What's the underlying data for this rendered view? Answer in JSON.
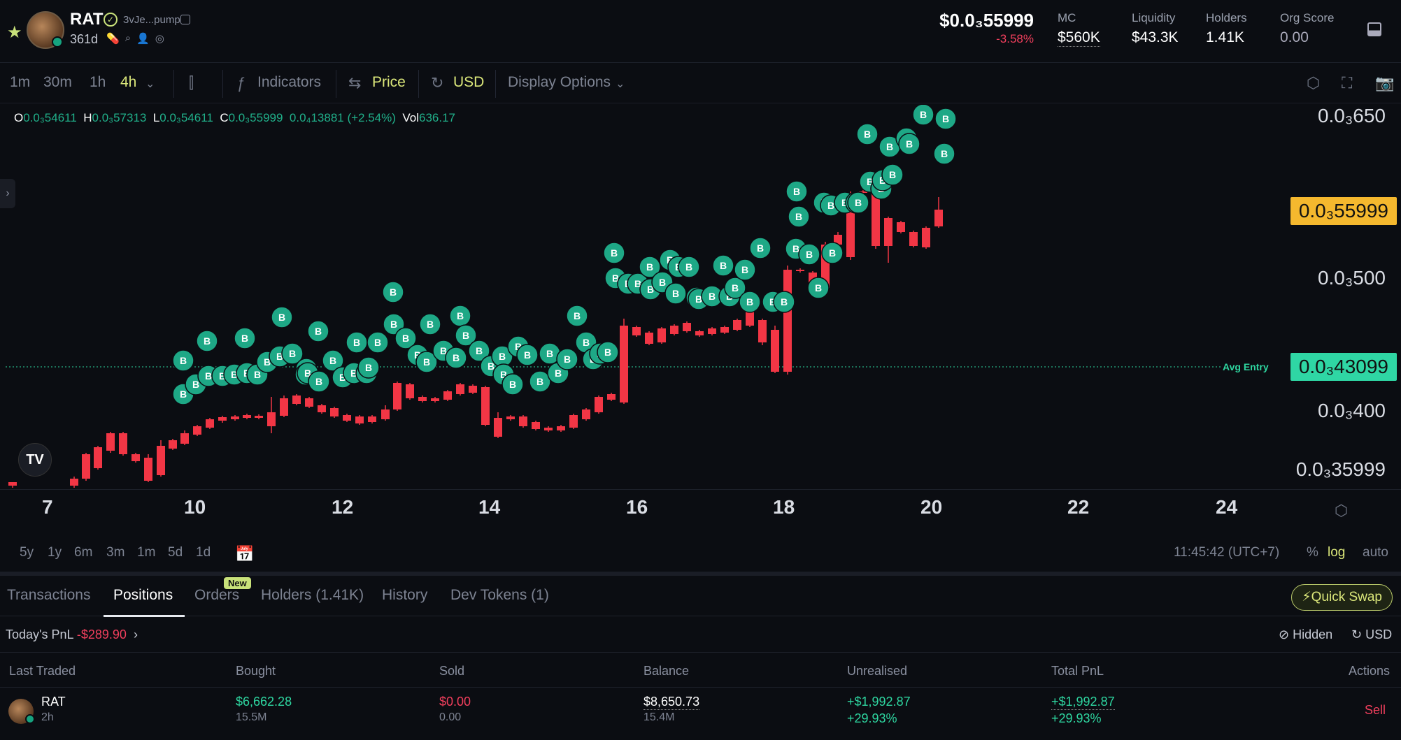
{
  "header": {
    "symbol": "RAT",
    "address": "3vJe...pump",
    "age": "361d",
    "price": "$0.0₃55999",
    "change": "-3.58%",
    "stats": [
      {
        "label": "MC",
        "value": "$560K"
      },
      {
        "label": "Liquidity",
        "value": "$43.3K"
      },
      {
        "label": "Holders",
        "value": "1.41K"
      },
      {
        "label": "Org Score",
        "value": "0.00"
      }
    ]
  },
  "toolbar": {
    "intervals": [
      "1m",
      "30m",
      "1h",
      "4h"
    ],
    "active_interval": "4h",
    "indicators_label": "Indicators",
    "price_label": "Price",
    "currency_label": "USD",
    "display_label": "Display Options"
  },
  "ohlc": {
    "o_label": "O",
    "o": "0.0₃54611",
    "h_label": "H",
    "h": "0.0₃57313",
    "l_label": "L",
    "l": "0.0₃54611",
    "c_label": "C",
    "c": "0.0₃55999",
    "change": "0.0₄13881 (+2.54%)",
    "vol_label": "Vol",
    "vol": "636.17"
  },
  "chart": {
    "price_ticks": [
      "0.0₃650",
      "0.0₃500",
      "0.0₃400",
      "0.0₃35999"
    ],
    "price_tag": "0.0₃55999",
    "avg_entry_label": "Avg Entry",
    "avg_entry_tag": "0.0₃43099",
    "date_ticks": [
      "7",
      "10",
      "12",
      "14",
      "16",
      "18",
      "20",
      "22",
      "24"
    ],
    "marker_label": "B",
    "colors": {
      "up": "#089981",
      "down": "#f23645",
      "marker": "#1ea886"
    }
  },
  "ranges": {
    "items": [
      "5y",
      "1y",
      "6m",
      "3m",
      "1m",
      "5d",
      "1d"
    ],
    "clock": "11:45:42 (UTC+7)",
    "pct": "%",
    "log": "log",
    "auto": "auto"
  },
  "tabs": {
    "items": [
      "Transactions",
      "Positions",
      "Orders",
      "Holders (1.41K)",
      "History",
      "Dev Tokens (1)"
    ],
    "active": "Positions",
    "new_badge": "New",
    "quick_swap": "Quick Swap"
  },
  "pnl": {
    "label": "Today's PnL",
    "value": "-$289.90",
    "hidden": "Hidden",
    "usd": "USD"
  },
  "table": {
    "headers": [
      "Last Traded",
      "Bought",
      "Sold",
      "Balance",
      "Unrealised",
      "Total PnL",
      "Actions"
    ],
    "rows": [
      {
        "token": "RAT",
        "ago": "2h",
        "bought": "$6,662.28",
        "bought_qty": "15.5M",
        "sold": "$0.00",
        "sold_qty": "0.00",
        "balance": "$8,650.73",
        "balance_qty": "15.4M",
        "unrealised": "+$1,992.87",
        "unrealised_pct": "+29.93%",
        "total": "+$1,992.87",
        "total_pct": "+29.93%",
        "action": "Sell"
      }
    ]
  }
}
